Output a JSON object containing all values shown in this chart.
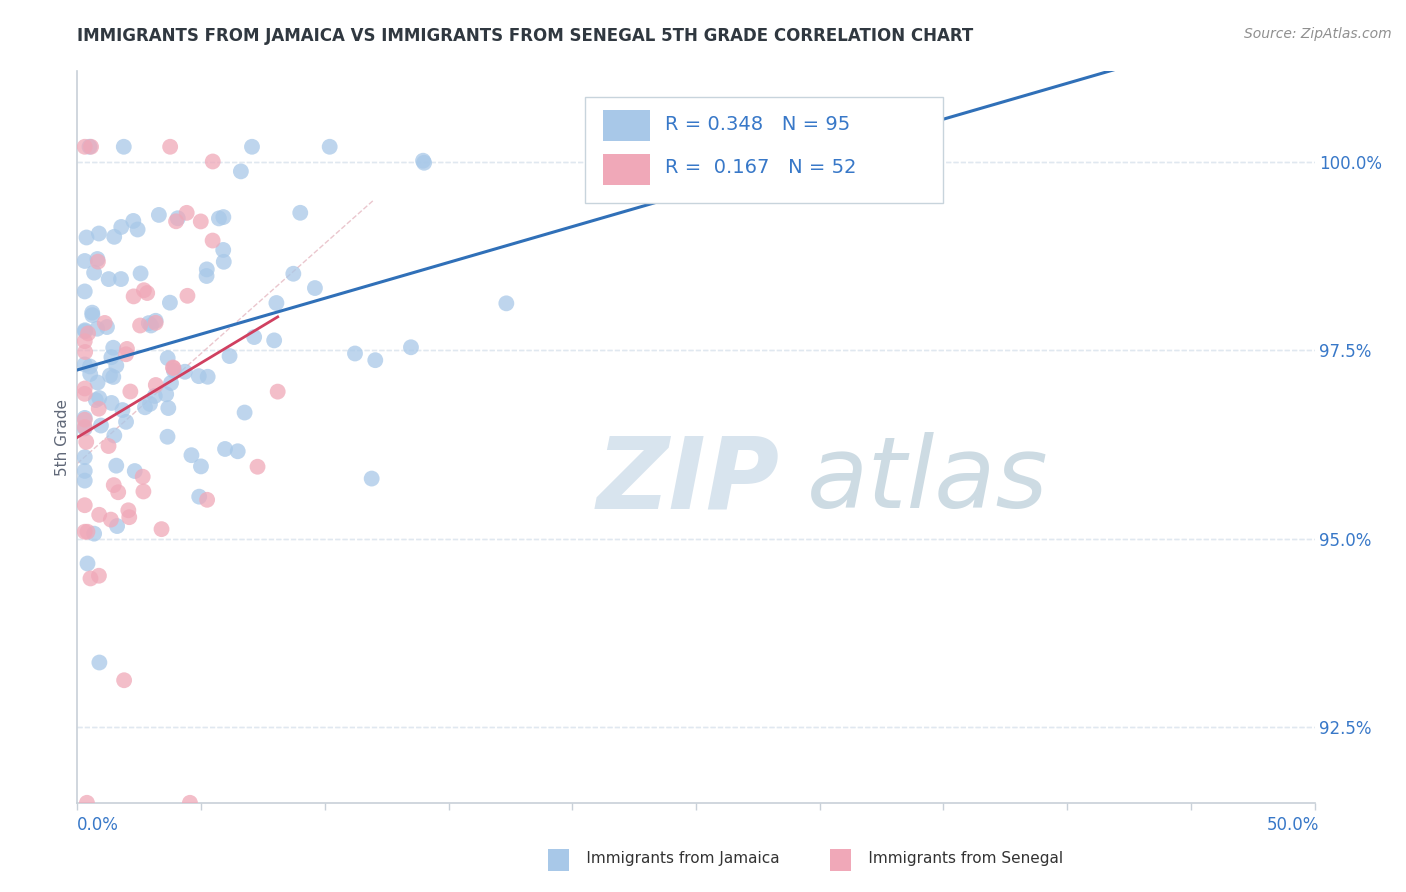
{
  "title": "IMMIGRANTS FROM JAMAICA VS IMMIGRANTS FROM SENEGAL 5TH GRADE CORRELATION CHART",
  "source": "Source: ZipAtlas.com",
  "ylabel": "5th Grade",
  "yticks": [
    92.5,
    95.0,
    97.5,
    100.0
  ],
  "ytick_labels": [
    "92.5%",
    "95.0%",
    "97.5%",
    "100.0%"
  ],
  "xlim": [
    0.0,
    50.0
  ],
  "ylim": [
    91.5,
    101.2
  ],
  "jamaica_R": 0.348,
  "jamaica_N": 95,
  "senegal_R": 0.167,
  "senegal_N": 52,
  "jamaica_color": "#a8c8e8",
  "senegal_color": "#f0a8b8",
  "jamaica_line_color": "#3070b8",
  "senegal_line_color": "#d04060",
  "ref_line_color": "#e8c0c8",
  "watermark_zip_color": "#d8e4ee",
  "watermark_atlas_color": "#b8ccd8",
  "legend_R_color": "#3878c8",
  "background_color": "#ffffff",
  "grid_color": "#e0e8f0",
  "axis_color": "#c8d0d8",
  "ylabel_color": "#606878",
  "tick_label_color": "#3878c8",
  "title_color": "#303840",
  "source_color": "#909090"
}
